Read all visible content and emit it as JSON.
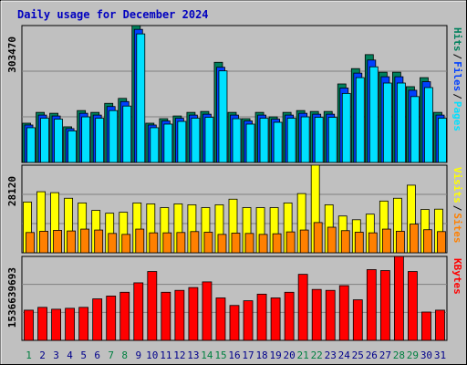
{
  "title": "Daily usage for December 2024",
  "chart_data": [
    {
      "type": "bar",
      "legend_separator": "/",
      "ylim": [
        0,
        303470
      ],
      "yticks": [
        303470
      ],
      "series": [
        {
          "name": "Hits",
          "color": "#00805c",
          "values": [
            87000,
            111000,
            109000,
            79000,
            115000,
            111000,
            131000,
            142000,
            303470,
            87000,
            97000,
            103000,
            111000,
            113000,
            222000,
            111000,
            97000,
            111000,
            101000,
            111000,
            115000,
            113000,
            113000,
            174000,
            208000,
            239000,
            200000,
            200000,
            168000,
            188000,
            111000
          ]
        },
        {
          "name": "Files",
          "color": "#0040ff",
          "values": [
            83000,
            105000,
            103000,
            75000,
            109000,
            105000,
            124000,
            135000,
            295000,
            83000,
            92000,
            98000,
            105000,
            107000,
            211000,
            105000,
            92000,
            105000,
            96000,
            105000,
            109000,
            107000,
            107000,
            165000,
            198000,
            227000,
            190000,
            190000,
            160000,
            179000,
            105000
          ]
        },
        {
          "name": "Pages",
          "color": "#00e0ff",
          "values": [
            77000,
            98000,
            96000,
            70000,
            101000,
            98000,
            115000,
            125000,
            285000,
            77000,
            85000,
            91000,
            98000,
            100000,
            203000,
            97000,
            85000,
            98000,
            89000,
            98000,
            101000,
            100000,
            100000,
            153000,
            188000,
            212000,
            176000,
            176000,
            146000,
            166000,
            98000
          ]
        }
      ]
    },
    {
      "type": "bar",
      "legend_separator": "/",
      "ylim": [
        0,
        28120
      ],
      "yticks": [
        28120
      ],
      "series": [
        {
          "name": "Visits",
          "color": "#ffff00",
          "values": [
            16300,
            19600,
            19300,
            17500,
            16000,
            13600,
            12700,
            13000,
            16000,
            15700,
            14500,
            15700,
            15400,
            14500,
            15400,
            17200,
            14500,
            14500,
            14500,
            16000,
            19000,
            28120,
            15400,
            11800,
            10600,
            12400,
            16600,
            17500,
            21700,
            13900,
            14000
          ]
        },
        {
          "name": "Sites",
          "color": "#ff8000",
          "values": [
            6500,
            6900,
            7200,
            7000,
            7600,
            7300,
            6200,
            5900,
            7600,
            6400,
            6400,
            6500,
            6800,
            6600,
            5900,
            6300,
            6200,
            5900,
            6100,
            6700,
            7300,
            9700,
            8200,
            7100,
            6600,
            6400,
            7600,
            6900,
            9200,
            7400,
            6800
          ]
        }
      ]
    },
    {
      "type": "bar",
      "ylim": [
        0,
        1536639693
      ],
      "yticks": [
        1536639693
      ],
      "categories": [
        "1",
        "2",
        "3",
        "4",
        "5",
        "6",
        "7",
        "8",
        "9",
        "10",
        "11",
        "12",
        "13",
        "14",
        "15",
        "16",
        "17",
        "18",
        "19",
        "20",
        "21",
        "22",
        "23",
        "24",
        "25",
        "26",
        "27",
        "28",
        "29",
        "30",
        "31"
      ],
      "category_colors": [
        "#008040",
        "#00008b",
        "#00008b",
        "#00008b",
        "#00008b",
        "#00008b",
        "#008040",
        "#008040",
        "#00008b",
        "#00008b",
        "#00008b",
        "#00008b",
        "#00008b",
        "#008040",
        "#008040",
        "#00008b",
        "#00008b",
        "#00008b",
        "#00008b",
        "#00008b",
        "#008040",
        "#008040",
        "#00008b",
        "#00008b",
        "#00008b",
        "#00008b",
        "#00008b",
        "#008040",
        "#008040",
        "#00008b",
        "#00008b"
      ],
      "series": [
        {
          "name": "KBytes",
          "color": "#ff0000",
          "values": [
            552500000,
            604300000,
            569800000,
            587000000,
            604300000,
            759700000,
            811500000,
            880500000,
            1053200000,
            1260400000,
            880500000,
            915100000,
            966900000,
            1070500000,
            777000000,
            638800000,
            725200000,
            846000000,
            777000000,
            880500000,
            1208600000,
            932300000,
            915100000,
            1001400000,
            742400000,
            1294900000,
            1277700000,
            1536639693,
            1260400000,
            518000000,
            552500000
          ]
        }
      ]
    }
  ]
}
